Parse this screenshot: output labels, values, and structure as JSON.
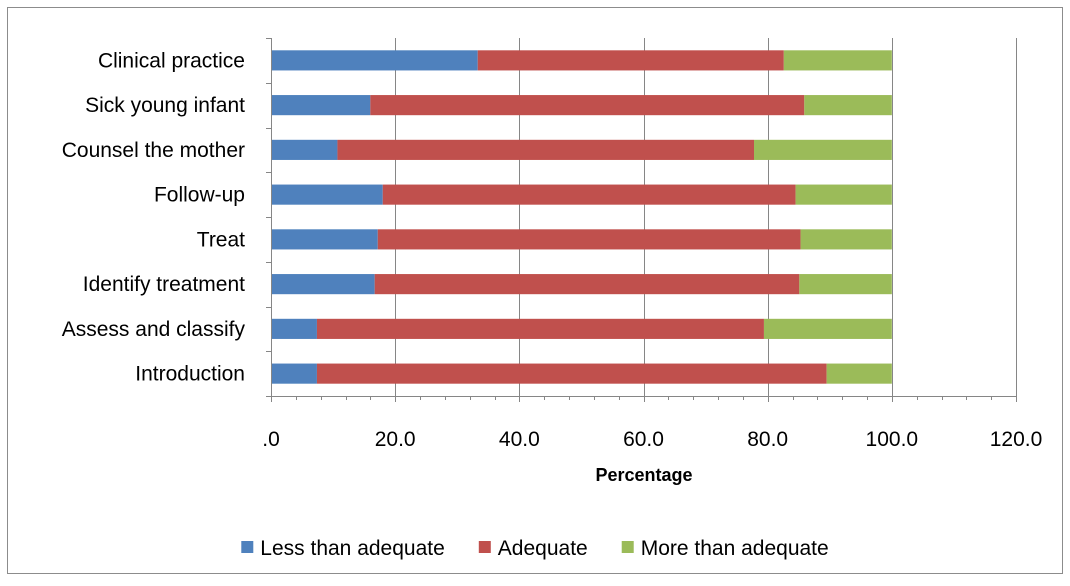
{
  "chart_data": {
    "type": "bar",
    "orientation": "horizontal",
    "stacked": true,
    "categories": [
      "Clinical practice",
      "Sick young infant",
      "Counsel the mother",
      "Follow-up",
      "Treat",
      "Identify treatment",
      "Assess and classify",
      "Introduction"
    ],
    "series": [
      {
        "name": "Less than adequate",
        "color": "#4f81bd",
        "values": [
          33.3,
          16.0,
          10.7,
          18.0,
          17.2,
          16.7,
          7.4,
          7.4
        ]
      },
      {
        "name": "Adequate",
        "color": "#c0504d",
        "values": [
          49.3,
          69.9,
          67.1,
          66.5,
          68.1,
          68.4,
          72.0,
          82.1
        ]
      },
      {
        "name": "More than adequate",
        "color": "#9bbb59",
        "values": [
          17.4,
          14.1,
          22.2,
          15.5,
          14.7,
          14.9,
          20.6,
          10.5
        ]
      }
    ],
    "xlabel": "Percentage",
    "xlim": [
      0,
      120
    ],
    "xticks": [
      0,
      20,
      40,
      60,
      80,
      100,
      120
    ],
    "xtick_labels": [
      ".0",
      "20.0",
      "40.0",
      "60.0",
      "80.0",
      "100.0",
      "120.0"
    ],
    "grid": "vertical major lines",
    "legend_position": "bottom"
  }
}
